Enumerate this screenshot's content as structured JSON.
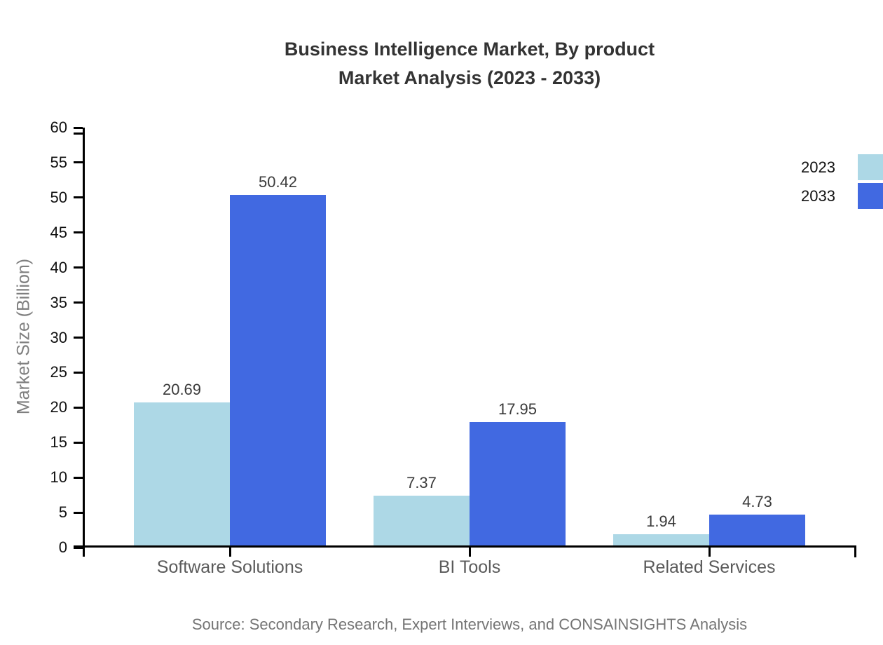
{
  "chart_data": {
    "type": "bar",
    "title": "Business Intelligence Market, By product\nMarket Analysis (2023 - 2033)",
    "categories": [
      "Software Solutions",
      "BI Tools",
      "Related Services"
    ],
    "series": [
      {
        "name": "2023",
        "color": "#ADD8E6",
        "values": [
          20.69,
          7.37,
          1.94
        ]
      },
      {
        "name": "2033",
        "color": "#4169E1",
        "values": [
          50.42,
          17.95,
          4.73
        ]
      }
    ],
    "xlabel": "",
    "ylabel": "Market Size (Billion)",
    "ylim": [
      0,
      60
    ],
    "yticks": [
      0,
      5,
      10,
      15,
      20,
      25,
      30,
      35,
      40,
      45,
      50,
      55,
      60
    ],
    "grid": false,
    "legend_position": "top-right",
    "value_labels": true
  },
  "source_note": "Source: Secondary Research, Expert Interviews, and CONSAINSIGHTS Analysis",
  "colors": {
    "background": "#ffffff",
    "axis": "#000000",
    "title_text": "#333333",
    "tick_label": "#111111",
    "value_label": "#3a3a3a",
    "category_label": "#5b5b5b",
    "axis_title": "#7f7f7f",
    "source_text": "#757575"
  }
}
